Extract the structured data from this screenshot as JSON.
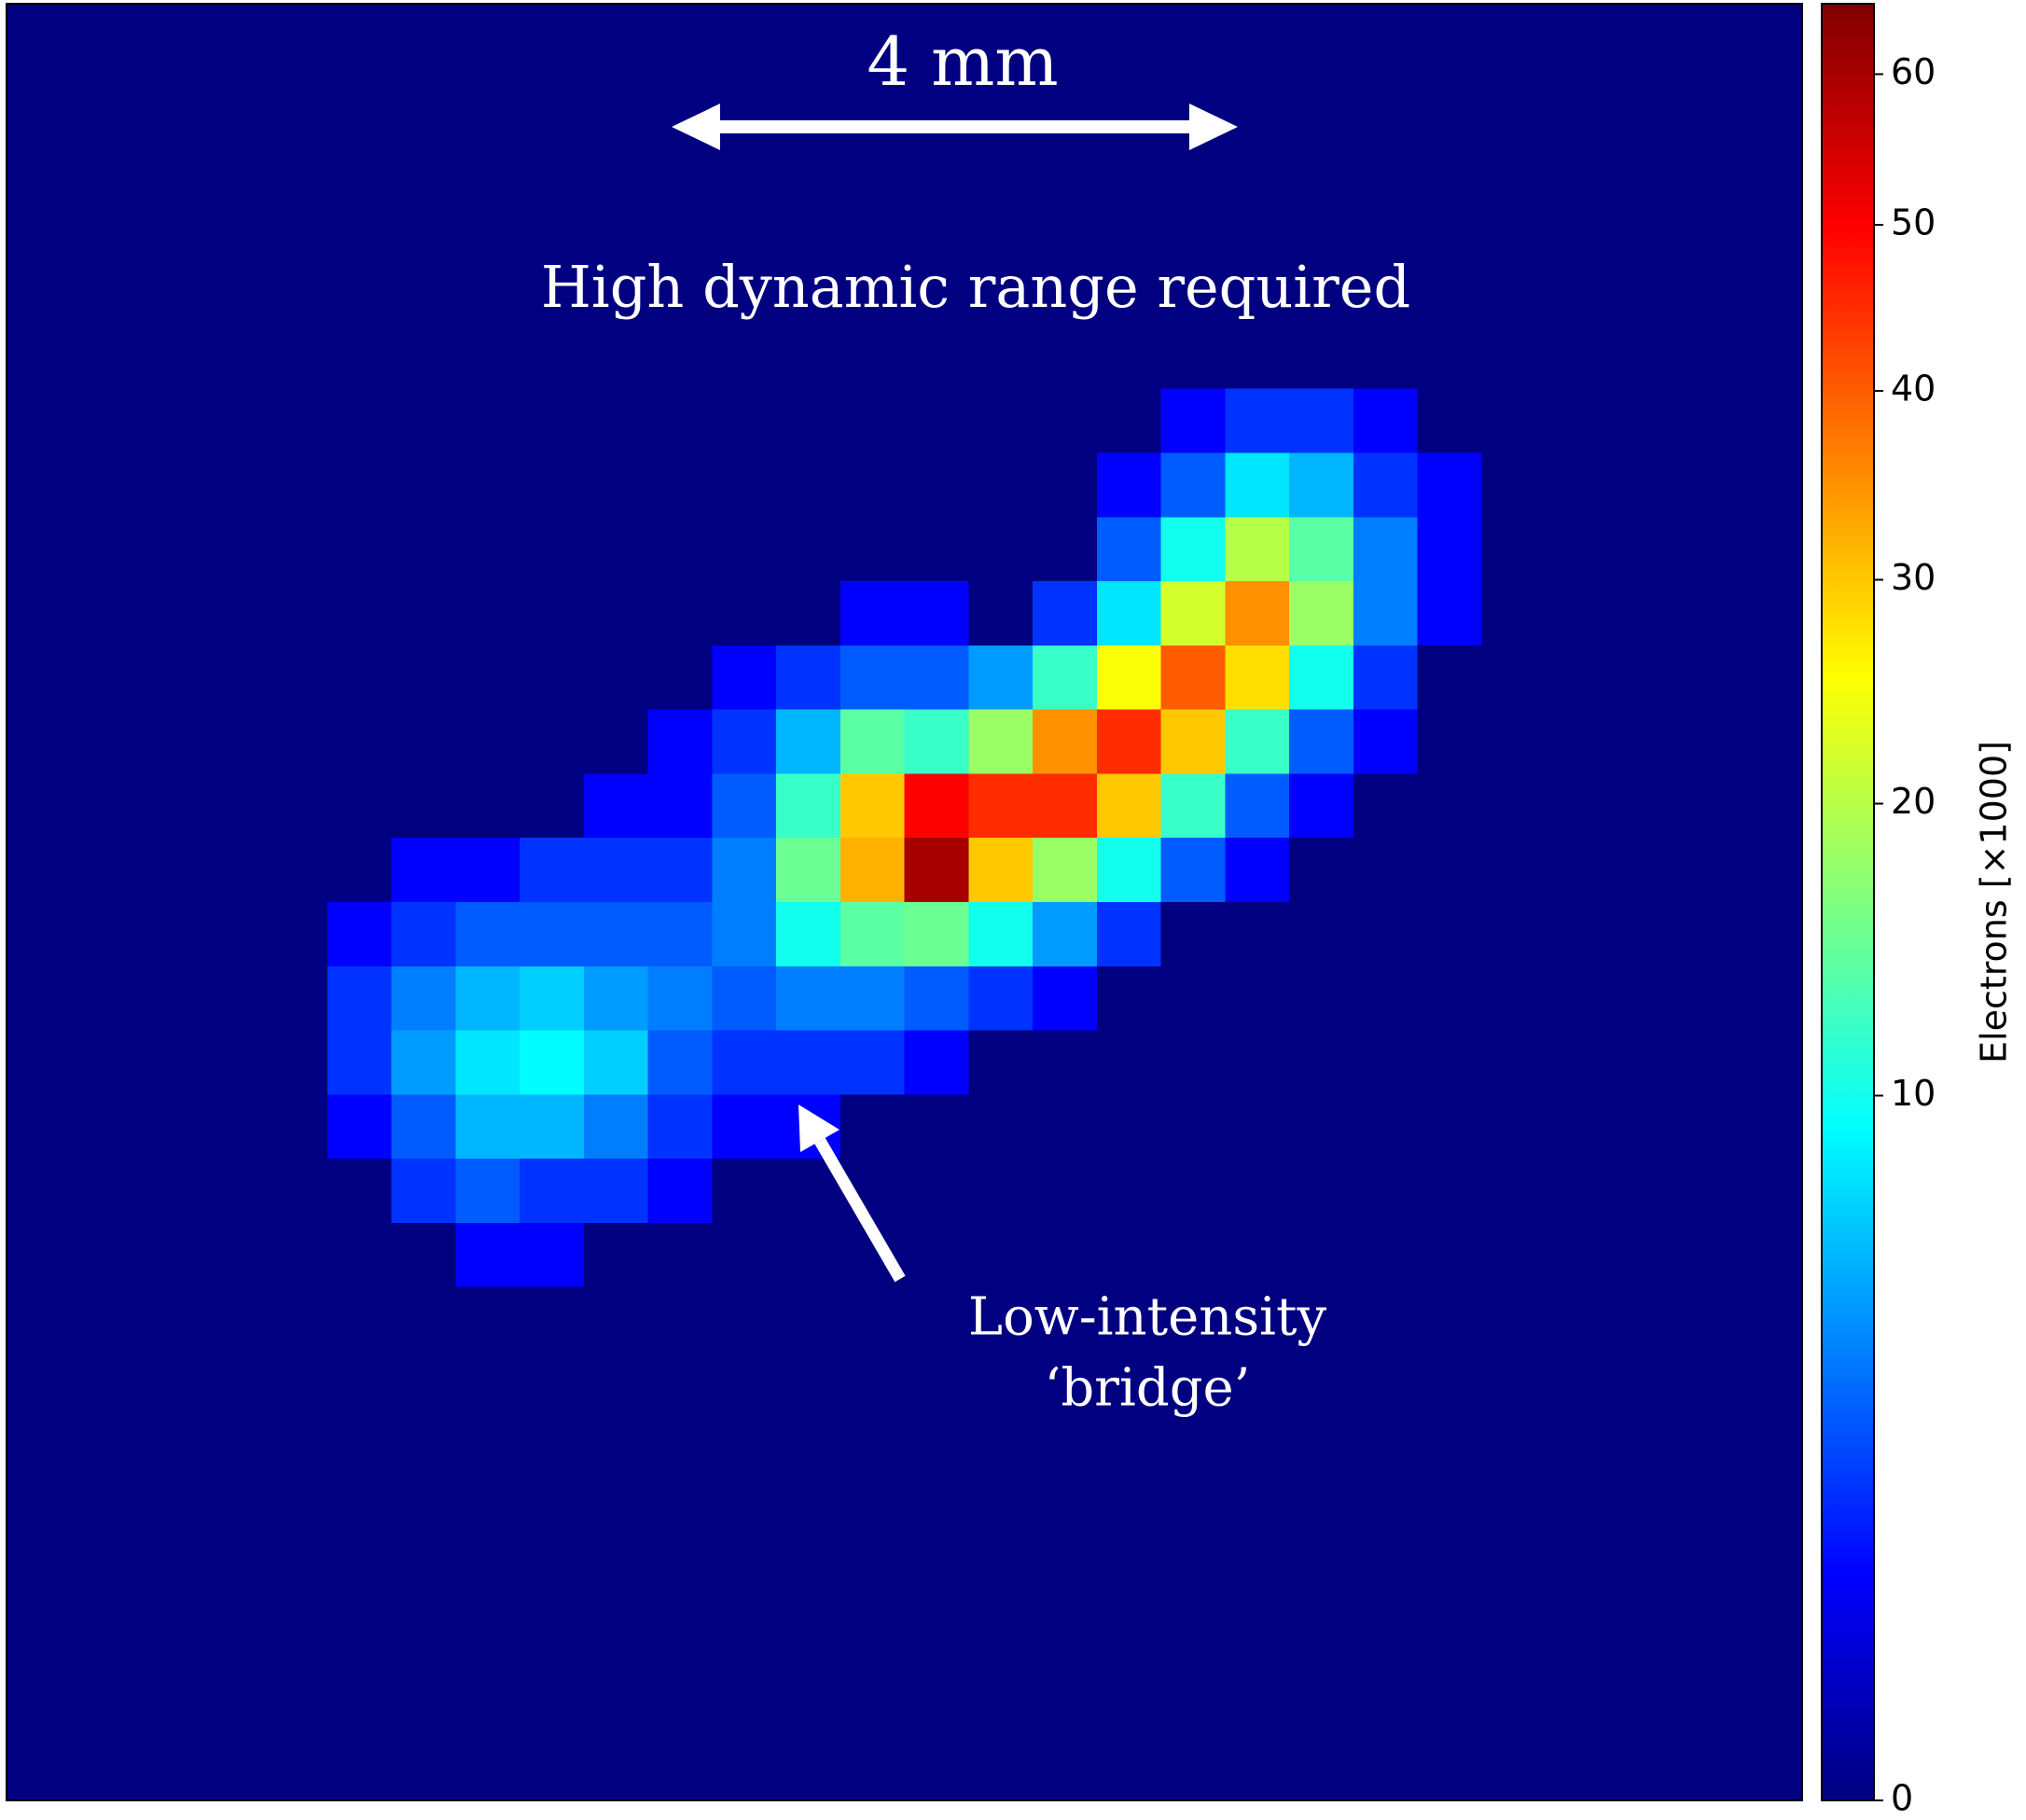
{
  "chart_data": {
    "type": "heatmap",
    "title": "High dynamic range required",
    "scale_bar": "4 mm",
    "annotation": [
      "Low-intensity",
      "‘bridge’"
    ],
    "colormap": "jet",
    "z": [
      [
        0,
        0,
        0,
        0,
        0,
        0,
        0,
        0,
        0,
        0,
        0,
        0,
        0,
        0,
        0,
        0,
        0,
        0,
        0,
        0,
        0,
        0,
        0,
        0,
        0,
        0,
        0,
        0
      ],
      [
        0,
        0,
        0,
        0,
        0,
        0,
        0,
        0,
        0,
        0,
        0,
        0,
        0,
        0,
        0,
        0,
        0,
        0,
        0,
        0,
        0,
        0,
        0,
        0,
        0,
        0,
        0,
        0
      ],
      [
        0,
        0,
        0,
        0,
        0,
        0,
        0,
        0,
        0,
        0,
        0,
        0,
        0,
        0,
        0,
        0,
        0,
        0,
        0,
        0,
        0,
        0,
        0,
        0,
        0,
        0,
        0,
        0
      ],
      [
        0,
        0,
        0,
        0,
        0,
        0,
        0,
        0,
        0,
        0,
        0,
        0,
        0,
        0,
        0,
        0,
        0,
        0,
        0,
        0,
        0,
        0,
        0,
        0,
        0,
        0,
        0,
        0
      ],
      [
        0,
        0,
        0,
        0,
        0,
        0,
        0,
        0,
        0,
        0,
        0,
        0,
        0,
        0,
        0,
        0,
        0,
        0,
        0,
        0,
        0,
        0,
        0,
        0,
        0,
        0,
        0,
        0
      ],
      [
        0,
        0,
        0,
        0,
        0,
        0,
        0,
        0,
        0,
        0,
        0,
        0,
        0,
        0,
        0,
        0,
        0,
        0,
        0,
        0,
        0,
        0,
        0,
        0,
        0,
        0,
        0,
        0
      ],
      [
        0,
        0,
        0,
        0,
        0,
        0,
        0,
        0,
        0,
        0,
        0,
        0,
        0,
        0,
        0,
        0,
        0,
        0,
        1,
        2,
        2,
        1,
        0,
        0,
        0,
        0,
        0,
        0
      ],
      [
        0,
        0,
        0,
        0,
        0,
        0,
        0,
        0,
        0,
        0,
        0,
        0,
        0,
        0,
        0,
        0,
        0,
        1,
        3,
        8,
        6,
        2,
        1,
        0,
        0,
        0,
        0,
        0
      ],
      [
        0,
        0,
        0,
        0,
        0,
        0,
        0,
        0,
        0,
        0,
        0,
        0,
        0,
        0,
        0,
        0,
        0,
        3,
        10,
        20,
        14,
        4,
        1,
        0,
        0,
        0,
        0,
        0
      ],
      [
        0,
        0,
        0,
        0,
        0,
        0,
        0,
        0,
        0,
        0,
        0,
        0,
        0,
        1,
        1,
        0,
        2,
        8,
        22,
        35,
        18,
        4,
        1,
        0,
        0,
        0,
        0,
        0
      ],
      [
        0,
        0,
        0,
        0,
        0,
        0,
        0,
        0,
        0,
        0,
        0,
        1,
        2,
        3,
        3,
        5,
        12,
        25,
        40,
        28,
        10,
        2,
        0,
        0,
        0,
        0,
        0,
        0
      ],
      [
        0,
        0,
        0,
        0,
        0,
        0,
        0,
        0,
        0,
        0,
        1,
        2,
        6,
        14,
        12,
        18,
        35,
        45,
        30,
        12,
        3,
        1,
        0,
        0,
        0,
        0,
        0,
        0
      ],
      [
        0,
        0,
        0,
        0,
        0,
        0,
        0,
        0,
        0,
        1,
        1,
        3,
        12,
        30,
        50,
        45,
        45,
        30,
        12,
        3,
        1,
        0,
        0,
        0,
        0,
        0,
        0,
        0
      ],
      [
        0,
        0,
        0,
        0,
        0,
        0,
        1,
        1,
        2,
        2,
        2,
        4,
        15,
        32,
        60,
        30,
        18,
        10,
        3,
        1,
        0,
        0,
        0,
        0,
        0,
        0,
        0,
        0
      ],
      [
        0,
        0,
        0,
        0,
        0,
        1,
        2,
        3,
        3,
        3,
        3,
        4,
        10,
        14,
        15,
        10,
        5,
        2,
        0,
        0,
        0,
        0,
        0,
        0,
        0,
        0,
        0,
        0
      ],
      [
        0,
        0,
        0,
        0,
        0,
        2,
        4,
        6,
        7,
        5,
        4,
        3,
        4,
        4,
        3,
        2,
        1,
        0,
        0,
        0,
        0,
        0,
        0,
        0,
        0,
        0,
        0,
        0
      ],
      [
        0,
        0,
        0,
        0,
        0,
        2,
        5,
        8,
        9,
        7,
        3,
        2,
        2,
        2,
        1,
        0,
        0,
        0,
        0,
        0,
        0,
        0,
        0,
        0,
        0,
        0,
        0,
        0
      ],
      [
        0,
        0,
        0,
        0,
        0,
        1,
        3,
        6,
        6,
        4,
        2,
        1,
        1,
        0,
        0,
        0,
        0,
        0,
        0,
        0,
        0,
        0,
        0,
        0,
        0,
        0,
        0,
        0
      ],
      [
        0,
        0,
        0,
        0,
        0,
        0,
        2,
        3,
        2,
        2,
        1,
        0,
        0,
        0,
        0,
        0,
        0,
        0,
        0,
        0,
        0,
        0,
        0,
        0,
        0,
        0,
        0,
        0
      ],
      [
        0,
        0,
        0,
        0,
        0,
        0,
        0,
        1,
        1,
        0,
        0,
        0,
        0,
        0,
        0,
        0,
        0,
        0,
        0,
        0,
        0,
        0,
        0,
        0,
        0,
        0,
        0,
        0
      ],
      [
        0,
        0,
        0,
        0,
        0,
        0,
        0,
        0,
        0,
        0,
        0,
        0,
        0,
        0,
        0,
        0,
        0,
        0,
        0,
        0,
        0,
        0,
        0,
        0,
        0,
        0,
        0,
        0
      ],
      [
        0,
        0,
        0,
        0,
        0,
        0,
        0,
        0,
        0,
        0,
        0,
        0,
        0,
        0,
        0,
        0,
        0,
        0,
        0,
        0,
        0,
        0,
        0,
        0,
        0,
        0,
        0,
        0
      ],
      [
        0,
        0,
        0,
        0,
        0,
        0,
        0,
        0,
        0,
        0,
        0,
        0,
        0,
        0,
        0,
        0,
        0,
        0,
        0,
        0,
        0,
        0,
        0,
        0,
        0,
        0,
        0,
        0
      ],
      [
        0,
        0,
        0,
        0,
        0,
        0,
        0,
        0,
        0,
        0,
        0,
        0,
        0,
        0,
        0,
        0,
        0,
        0,
        0,
        0,
        0,
        0,
        0,
        0,
        0,
        0,
        0,
        0
      ],
      [
        0,
        0,
        0,
        0,
        0,
        0,
        0,
        0,
        0,
        0,
        0,
        0,
        0,
        0,
        0,
        0,
        0,
        0,
        0,
        0,
        0,
        0,
        0,
        0,
        0,
        0,
        0,
        0
      ],
      [
        0,
        0,
        0,
        0,
        0,
        0,
        0,
        0,
        0,
        0,
        0,
        0,
        0,
        0,
        0,
        0,
        0,
        0,
        0,
        0,
        0,
        0,
        0,
        0,
        0,
        0,
        0,
        0
      ],
      [
        0,
        0,
        0,
        0,
        0,
        0,
        0,
        0,
        0,
        0,
        0,
        0,
        0,
        0,
        0,
        0,
        0,
        0,
        0,
        0,
        0,
        0,
        0,
        0,
        0,
        0,
        0,
        0
      ],
      [
        0,
        0,
        0,
        0,
        0,
        0,
        0,
        0,
        0,
        0,
        0,
        0,
        0,
        0,
        0,
        0,
        0,
        0,
        0,
        0,
        0,
        0,
        0,
        0,
        0,
        0,
        0,
        0
      ]
    ],
    "colorbar": {
      "label": "Electrons [×1000]",
      "scale": "sqrt",
      "lim": [
        0,
        65
      ],
      "ticks": [
        0,
        10,
        20,
        30,
        40,
        50,
        60
      ]
    }
  }
}
